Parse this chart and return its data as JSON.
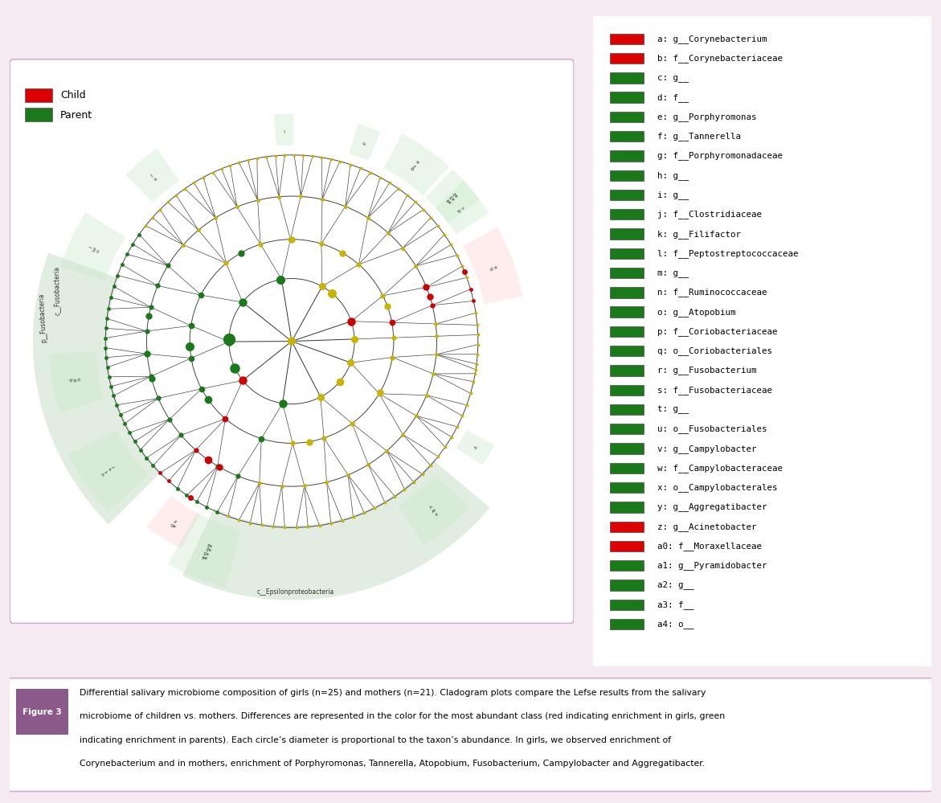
{
  "page_bg": "#f5eaf2",
  "clado_bg": "#ffffff",
  "legend_bg": "#ffffff",
  "caption_bg": "#ffffff",
  "border_color": "#d4a8cc",
  "yellow": "#c8b400",
  "dark_green": "#1a7a1a",
  "red_node": "#cc0000",
  "black_node": "#111111",
  "legend_red": "#dd0000",
  "legend_green": "#1a7a1a",
  "legend_items": [
    {
      "label": "a: g__Corynebacterium",
      "color": "#dd0000"
    },
    {
      "label": "b: f__Corynebacteriaceae",
      "color": "#dd0000"
    },
    {
      "label": "c: g__",
      "color": "#1a7a1a"
    },
    {
      "label": "d: f__",
      "color": "#1a7a1a"
    },
    {
      "label": "e: g__Porphyromonas",
      "color": "#1a7a1a"
    },
    {
      "label": "f: g__Tannerella",
      "color": "#1a7a1a"
    },
    {
      "label": "g: f__Porphyromonadaceae",
      "color": "#1a7a1a"
    },
    {
      "label": "h: g__",
      "color": "#1a7a1a"
    },
    {
      "label": "i: g__",
      "color": "#1a7a1a"
    },
    {
      "label": "j: f__Clostridiaceae",
      "color": "#1a7a1a"
    },
    {
      "label": "k: g__Filifactor",
      "color": "#1a7a1a"
    },
    {
      "label": "l: f__Peptostreptococcaceae",
      "color": "#1a7a1a"
    },
    {
      "label": "m: g__",
      "color": "#1a7a1a"
    },
    {
      "label": "n: f__Ruminococcaceae",
      "color": "#1a7a1a"
    },
    {
      "label": "o: g__Atopobium",
      "color": "#1a7a1a"
    },
    {
      "label": "p: f__Coriobacteriaceae",
      "color": "#1a7a1a"
    },
    {
      "label": "q: o__Coriobacteriales",
      "color": "#1a7a1a"
    },
    {
      "label": "r: g__Fusobacterium",
      "color": "#1a7a1a"
    },
    {
      "label": "s: f__Fusobacteriaceae",
      "color": "#1a7a1a"
    },
    {
      "label": "t: g__",
      "color": "#1a7a1a"
    },
    {
      "label": "u: o__Fusobacteriales",
      "color": "#1a7a1a"
    },
    {
      "label": "v: g__Campylobacter",
      "color": "#1a7a1a"
    },
    {
      "label": "w: f__Campylobacteraceae",
      "color": "#1a7a1a"
    },
    {
      "label": "x: o__Campylobacterales",
      "color": "#1a7a1a"
    },
    {
      "label": "y: g__Aggregatibacter",
      "color": "#1a7a1a"
    },
    {
      "label": "z: g__Acinetobacter",
      "color": "#dd0000"
    },
    {
      "label": "a0: f__Moraxellaceae",
      "color": "#dd0000"
    },
    {
      "label": "a1: g__Pyramidobacter",
      "color": "#1a7a1a"
    },
    {
      "label": "a2: g__",
      "color": "#1a7a1a"
    },
    {
      "label": "a3: f__",
      "color": "#1a7a1a"
    },
    {
      "label": "a4: o__",
      "color": "#1a7a1a"
    }
  ],
  "caption_text_normal": "Differential salivary microbiome composition of girls (n=25) and mothers (n=21). Cladogram plots compare the Lefse results from the salivary microbiome of children vs. mothers. Differences are represented in the color for the most abundant class (red indicating enrichment in girls, green indicating enrichment in parents). Each circle’s diameter is proportional to the taxon’s abundance. In girls, we observed enrichment of ",
  "caption_italic1": "Corynebacterium",
  "caption_between1": " and in mothers, enrichment of ",
  "caption_italic2": "Porphyromonas, Tannerella, Atopobium, Fusobacterium, Campylobacter",
  "caption_between2": " and ",
  "caption_italic3": "Aggregatibacter",
  "caption_end": ".",
  "fig_label_bg": "#8b5a8b",
  "radii": [
    0.065,
    0.16,
    0.26,
    0.37,
    0.475
  ]
}
